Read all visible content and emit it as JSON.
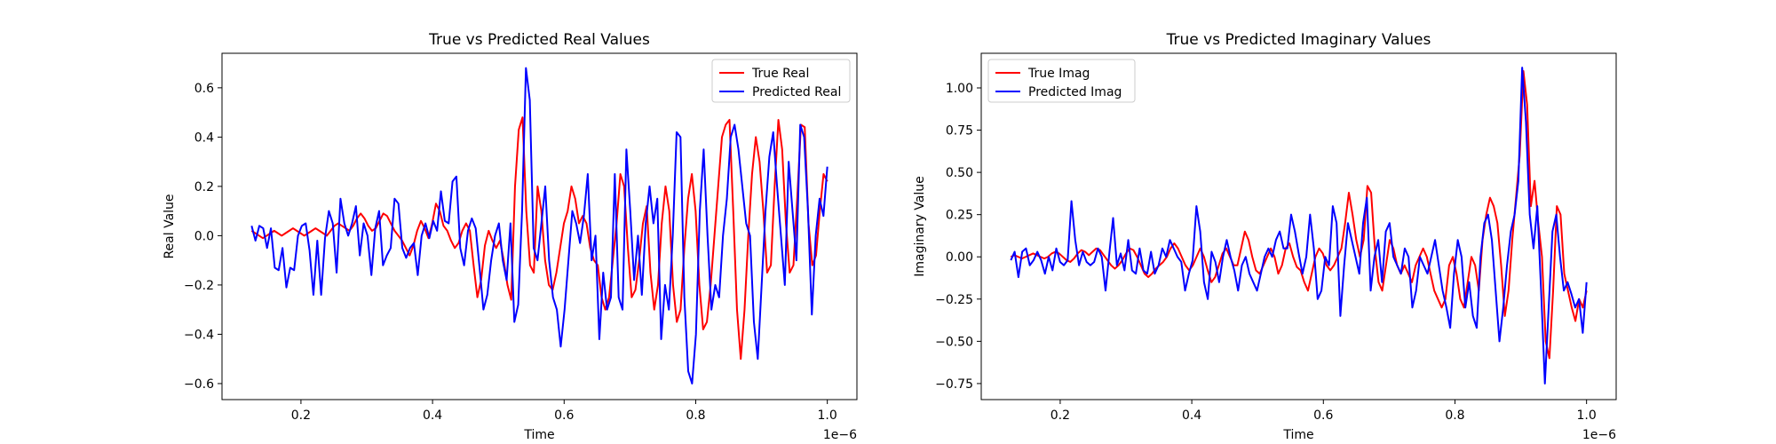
{
  "chart_data": [
    {
      "type": "line",
      "title": "True vs Predicted Real Values",
      "xlabel": "Time",
      "ylabel": "Real Value",
      "x_offset_label": "1e−6",
      "xlim": [
        0.08,
        1.045
      ],
      "ylim": [
        -0.665,
        0.74
      ],
      "xticks": [
        0.2,
        0.4,
        0.6,
        0.8,
        1.0
      ],
      "xtick_labels": [
        "0.2",
        "0.4",
        "0.6",
        "0.8",
        "1.0"
      ],
      "yticks": [
        -0.6,
        -0.4,
        -0.2,
        0.0,
        0.2,
        0.4,
        0.6
      ],
      "ytick_labels": [
        "−0.6",
        "−0.4",
        "−0.2",
        "0.0",
        "0.2",
        "0.4",
        "0.6"
      ],
      "legend_position": "upper right",
      "grid": false,
      "x_start": 0.125,
      "x_end": 1.0,
      "series": [
        {
          "name": "True Real",
          "color": "#ff0000",
          "y": [
            0.02,
            0.01,
            0.0,
            -0.01,
            0.0,
            0.01,
            0.02,
            0.01,
            0.0,
            0.01,
            0.02,
            0.03,
            0.02,
            0.01,
            0.0,
            0.01,
            0.02,
            0.03,
            0.02,
            0.01,
            0.0,
            0.02,
            0.04,
            0.05,
            0.04,
            0.03,
            0.02,
            0.04,
            0.07,
            0.09,
            0.07,
            0.04,
            0.02,
            0.03,
            0.06,
            0.09,
            0.08,
            0.05,
            0.02,
            0.0,
            -0.02,
            -0.05,
            -0.08,
            -0.04,
            0.02,
            0.06,
            0.03,
            -0.01,
            0.05,
            0.13,
            0.1,
            0.04,
            0.02,
            -0.02,
            -0.05,
            -0.03,
            0.02,
            0.05,
            0.02,
            -0.12,
            -0.25,
            -0.18,
            -0.04,
            0.02,
            -0.02,
            -0.05,
            -0.02,
            -0.1,
            -0.2,
            -0.26,
            0.2,
            0.43,
            0.48,
            0.1,
            -0.12,
            -0.15,
            0.2,
            0.1,
            -0.1,
            -0.2,
            -0.22,
            -0.15,
            -0.05,
            0.05,
            0.1,
            0.2,
            0.15,
            0.05,
            0.08,
            0.05,
            -0.05,
            -0.1,
            -0.12,
            -0.25,
            -0.3,
            -0.25,
            -0.1,
            0.05,
            0.25,
            0.2,
            -0.05,
            -0.25,
            -0.22,
            -0.1,
            0.05,
            0.12,
            -0.15,
            -0.3,
            -0.2,
            0.05,
            0.2,
            0.1,
            -0.2,
            -0.35,
            -0.3,
            -0.05,
            0.15,
            0.25,
            0.1,
            -0.2,
            -0.38,
            -0.35,
            -0.2,
            0.0,
            0.2,
            0.4,
            0.45,
            0.47,
            0.1,
            -0.3,
            -0.5,
            -0.3,
            0.0,
            0.25,
            0.4,
            0.3,
            0.1,
            -0.15,
            -0.12,
            0.2,
            0.47,
            0.35,
            0.05,
            -0.15,
            -0.12,
            0.15,
            0.45,
            0.44,
            0.05,
            -0.12,
            -0.08,
            0.1,
            0.25,
            0.22
          ]
        },
        {
          "name": "Predicted Real",
          "color": "#0000ff",
          "y": [
            0.04,
            -0.02,
            0.04,
            0.03,
            -0.05,
            0.03,
            -0.13,
            -0.14,
            -0.05,
            -0.21,
            -0.13,
            -0.14,
            0.0,
            0.04,
            0.05,
            -0.06,
            -0.24,
            -0.02,
            -0.24,
            -0.01,
            0.1,
            0.05,
            -0.15,
            0.15,
            0.05,
            0.0,
            0.05,
            0.12,
            -0.08,
            0.05,
            0.0,
            -0.16,
            0.03,
            0.1,
            -0.12,
            -0.08,
            -0.05,
            0.15,
            0.13,
            -0.05,
            -0.09,
            -0.05,
            -0.03,
            -0.16,
            0.0,
            0.05,
            -0.01,
            0.06,
            0.02,
            0.18,
            0.06,
            0.05,
            0.22,
            0.24,
            -0.05,
            -0.12,
            0.02,
            0.07,
            0.03,
            -0.13,
            -0.3,
            -0.24,
            -0.1,
            0.0,
            0.05,
            -0.1,
            -0.18,
            0.05,
            -0.35,
            -0.28,
            0.1,
            0.68,
            0.55,
            -0.05,
            -0.1,
            0.05,
            0.2,
            -0.1,
            -0.25,
            -0.3,
            -0.45,
            -0.3,
            -0.1,
            0.1,
            0.05,
            -0.03,
            0.08,
            0.25,
            -0.1,
            0.0,
            -0.42,
            -0.15,
            -0.3,
            -0.25,
            0.25,
            -0.25,
            -0.3,
            0.35,
            0.1,
            -0.18,
            0.0,
            -0.24,
            0.05,
            0.2,
            0.05,
            0.15,
            -0.42,
            -0.2,
            -0.3,
            0.0,
            0.42,
            0.4,
            -0.25,
            -0.55,
            -0.6,
            -0.4,
            0.1,
            0.35,
            0.0,
            -0.3,
            -0.2,
            -0.25,
            0.0,
            0.15,
            0.4,
            0.45,
            0.35,
            0.2,
            0.05,
            0.0,
            -0.35,
            -0.5,
            -0.2,
            0.1,
            0.32,
            0.42,
            0.2,
            0.0,
            -0.2,
            0.3,
            0.1,
            -0.1,
            0.45,
            0.4,
            0.1,
            -0.32,
            0.0,
            0.15,
            0.08,
            0.28
          ]
        }
      ]
    },
    {
      "type": "line",
      "title": "True vs Predicted Imaginary Values",
      "xlabel": "Time",
      "ylabel": "Imaginary Value",
      "x_offset_label": "1e−6",
      "xlim": [
        0.08,
        1.045
      ],
      "ylim": [
        -0.845,
        1.205
      ],
      "xticks": [
        0.2,
        0.4,
        0.6,
        0.8,
        1.0
      ],
      "xtick_labels": [
        "0.2",
        "0.4",
        "0.6",
        "0.8",
        "1.0"
      ],
      "yticks": [
        -0.75,
        -0.5,
        -0.25,
        0.0,
        0.25,
        0.5,
        0.75,
        1.0
      ],
      "ytick_labels": [
        "−0.75",
        "−0.50",
        "−0.25",
        "0.00",
        "0.25",
        "0.50",
        "0.75",
        "1.00"
      ],
      "legend_position": "upper left",
      "grid": false,
      "x_start": 0.125,
      "x_end": 1.0,
      "series": [
        {
          "name": "True Imag",
          "color": "#ff0000",
          "y": [
            0.0,
            0.01,
            0.0,
            -0.01,
            0.0,
            0.01,
            0.02,
            0.01,
            0.0,
            -0.01,
            0.0,
            0.02,
            0.03,
            0.02,
            0.0,
            -0.02,
            -0.03,
            -0.01,
            0.02,
            0.04,
            0.03,
            0.01,
            0.03,
            0.05,
            0.04,
            0.01,
            -0.02,
            -0.05,
            -0.07,
            -0.05,
            -0.02,
            0.02,
            0.05,
            0.04,
            0.0,
            -0.05,
            -0.1,
            -0.12,
            -0.1,
            -0.07,
            -0.05,
            -0.03,
            0.0,
            0.05,
            0.08,
            0.05,
            0.0,
            -0.05,
            -0.08,
            -0.05,
            0.0,
            0.05,
            0.0,
            -0.08,
            -0.15,
            -0.12,
            -0.05,
            0.02,
            0.05,
            0.0,
            -0.05,
            -0.05,
            0.05,
            0.15,
            0.1,
            0.0,
            -0.08,
            -0.1,
            -0.05,
            0.0,
            0.05,
            0.0,
            -0.1,
            -0.05,
            0.05,
            0.08,
            0.0,
            -0.06,
            -0.08,
            -0.15,
            -0.2,
            -0.1,
            0.0,
            0.05,
            0.02,
            -0.05,
            -0.08,
            -0.05,
            0.0,
            0.05,
            0.2,
            0.38,
            0.25,
            0.1,
            0.0,
            0.1,
            0.42,
            0.38,
            0.05,
            -0.15,
            -0.2,
            -0.05,
            0.1,
            0.05,
            -0.05,
            -0.1,
            -0.05,
            -0.1,
            -0.15,
            -0.05,
            0.0,
            0.05,
            0.0,
            -0.1,
            -0.2,
            -0.25,
            -0.3,
            -0.25,
            -0.05,
            0.0,
            -0.1,
            -0.25,
            -0.3,
            -0.15,
            0.0,
            -0.05,
            -0.2,
            0.1,
            0.25,
            0.35,
            0.3,
            0.2,
            -0.05,
            -0.35,
            -0.2,
            0.1,
            0.35,
            0.6,
            1.1,
            0.9,
            0.3,
            0.45,
            0.2,
            0.0,
            -0.5,
            -0.6,
            -0.2,
            0.3,
            0.25,
            -0.1,
            -0.2,
            -0.3,
            -0.38,
            -0.25,
            -0.3,
            -0.2
          ]
        },
        {
          "name": "Predicted Imag",
          "color": "#0000ff",
          "y": [
            -0.02,
            0.03,
            -0.12,
            0.03,
            0.05,
            -0.05,
            -0.02,
            0.03,
            -0.02,
            -0.1,
            0.0,
            -0.08,
            0.05,
            -0.03,
            -0.05,
            -0.02,
            0.33,
            0.1,
            -0.05,
            0.03,
            -0.03,
            -0.05,
            -0.03,
            0.05,
            0.0,
            -0.2,
            0.02,
            0.23,
            -0.05,
            0.02,
            -0.08,
            0.1,
            -0.08,
            -0.1,
            0.05,
            -0.08,
            -0.1,
            0.03,
            -0.1,
            -0.05,
            0.05,
            0.0,
            0.1,
            0.05,
            0.0,
            -0.03,
            -0.2,
            -0.1,
            -0.02,
            0.3,
            0.15,
            -0.15,
            -0.25,
            0.03,
            -0.03,
            -0.15,
            0.0,
            0.1,
            0.0,
            -0.08,
            -0.2,
            -0.05,
            0.0,
            -0.1,
            -0.15,
            -0.2,
            -0.1,
            0.0,
            0.05,
            0.0,
            0.1,
            0.15,
            0.05,
            0.05,
            0.25,
            0.15,
            0.02,
            -0.1,
            0.0,
            0.25,
            0.05,
            -0.25,
            -0.2,
            0.0,
            -0.05,
            0.3,
            0.2,
            -0.35,
            -0.05,
            0.2,
            0.1,
            0.0,
            -0.1,
            0.2,
            0.35,
            -0.2,
            0.0,
            0.1,
            -0.15,
            0.15,
            0.2,
            0.0,
            -0.05,
            -0.1,
            0.05,
            0.0,
            -0.3,
            -0.2,
            0.0,
            -0.05,
            -0.1,
            0.0,
            0.1,
            -0.05,
            -0.2,
            -0.3,
            -0.42,
            -0.1,
            0.1,
            0.0,
            -0.3,
            -0.15,
            -0.35,
            -0.42,
            0.0,
            0.2,
            0.25,
            0.1,
            -0.2,
            -0.5,
            -0.3,
            -0.05,
            0.15,
            0.25,
            0.45,
            1.12,
            0.8,
            0.25,
            0.05,
            0.3,
            -0.2,
            -0.75,
            -0.3,
            0.15,
            0.25,
            0.0,
            -0.2,
            -0.15,
            -0.22,
            -0.3,
            -0.25,
            -0.45,
            -0.15
          ]
        }
      ]
    }
  ]
}
